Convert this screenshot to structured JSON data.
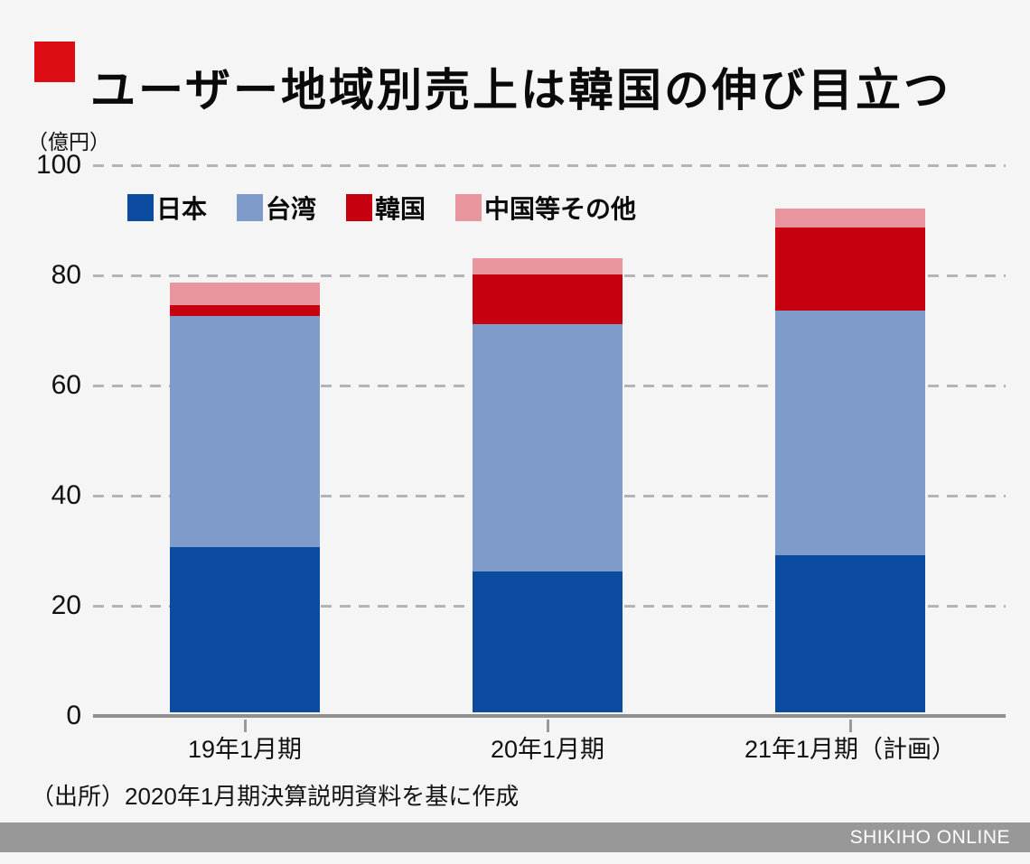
{
  "background_color": "#f5f5f6",
  "title": {
    "text": "ユーザー地域別売上は韓国の伸び目立つ",
    "accent_color": "#dc0c15"
  },
  "chart_data": {
    "type": "bar",
    "stacked": true,
    "unit_label": "（億円）",
    "categories": [
      "19年1月期",
      "20年1月期",
      "21年1月期（計画）"
    ],
    "series": [
      {
        "name": "日本",
        "color": "#0b4ba0",
        "values": [
          30,
          25.5,
          28.5
        ]
      },
      {
        "name": "台湾",
        "color": "#7e9bca",
        "values": [
          42,
          45,
          44.5
        ]
      },
      {
        "name": "韓国",
        "color": "#c7000f",
        "values": [
          2,
          9,
          15
        ]
      },
      {
        "name": "中国等その他",
        "color": "#e8959e",
        "values": [
          4,
          3,
          3.5
        ]
      }
    ],
    "totals": [
      78,
      82.5,
      91.5
    ],
    "ylim": [
      0,
      100
    ],
    "yticks": [
      0,
      20,
      40,
      60,
      80,
      100
    ],
    "grid": "horizontal-dashed",
    "gridline_color": "#b4b4b6",
    "axis_line_color": "#8f8f90",
    "legend_position": "top-left-inside"
  },
  "source": "（出所）2020年1月期決算説明資料を基に作成",
  "footer": {
    "brand": "SHIKIHO ONLINE",
    "bar_color": "#989898",
    "text_color": "#ffffff"
  }
}
